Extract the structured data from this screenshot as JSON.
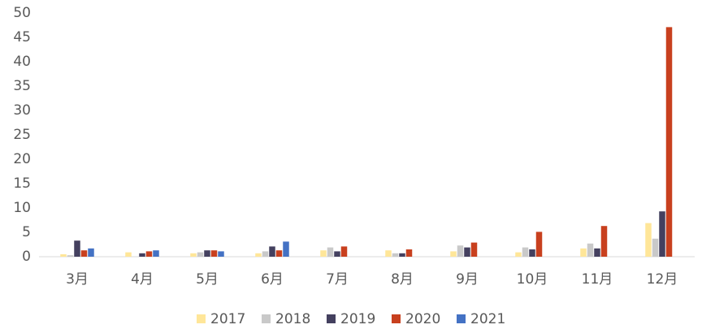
{
  "chart_data": {
    "type": "bar",
    "categories": [
      "3月",
      "4月",
      "5月",
      "6月",
      "7月",
      "8月",
      "9月",
      "10月",
      "11月",
      "12月"
    ],
    "series": [
      {
        "name": "2017",
        "color": "#ffe699",
        "values": [
          0.5,
          0.9,
          0.7,
          0.7,
          1.3,
          1.3,
          1.1,
          0.9,
          1.7,
          6.9
        ]
      },
      {
        "name": "2018",
        "color": "#c9c9c9",
        "values": [
          0.3,
          0,
          0.9,
          1.1,
          1.9,
          0.7,
          2.3,
          1.9,
          2.7,
          3.7
        ]
      },
      {
        "name": "2019",
        "color": "#44405f",
        "values": [
          3.3,
          0.7,
          1.3,
          2.1,
          1.1,
          0.7,
          1.9,
          1.5,
          1.7,
          9.3
        ]
      },
      {
        "name": "2020",
        "color": "#c8401e",
        "values": [
          1.3,
          1.1,
          1.3,
          1.3,
          2.1,
          1.5,
          2.9,
          5.1,
          6.3,
          47.1
        ]
      },
      {
        "name": "2021",
        "color": "#4472c4",
        "values": [
          1.7,
          1.3,
          1.1,
          3.1,
          null,
          null,
          null,
          null,
          null,
          null
        ]
      }
    ],
    "ylim": [
      0,
      50
    ],
    "yticks": [
      0,
      5,
      10,
      15,
      20,
      25,
      30,
      35,
      40,
      45,
      50
    ],
    "grid": false,
    "legend": "bottom"
  }
}
